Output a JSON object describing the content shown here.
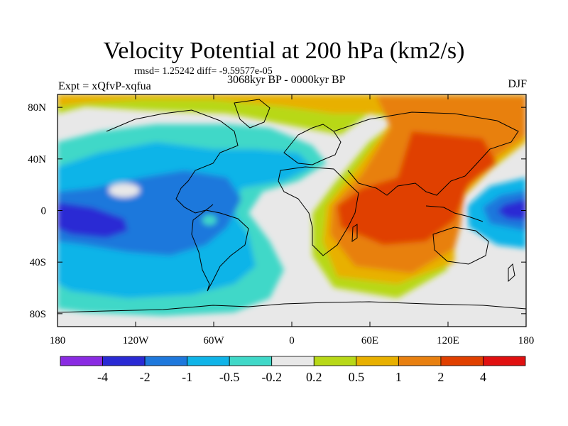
{
  "header": {
    "title": "Velocity Potential at 200 hPa (km2/s)",
    "stats": "rmsd= 1.25242 diff= -9.59577e-05",
    "experiment": "Expt = xQfvP-xqfua",
    "period": "3068kyr BP - 0000kyr BP",
    "season": "DJF"
  },
  "map": {
    "lon_range": [
      -180,
      180
    ],
    "lat_range": [
      -90,
      90
    ],
    "lat_ticks": [
      {
        "value": 80,
        "label": "80N"
      },
      {
        "value": 40,
        "label": "40N"
      },
      {
        "value": 0,
        "label": "0"
      },
      {
        "value": -40,
        "label": "40S"
      },
      {
        "value": -80,
        "label": "80S"
      }
    ],
    "lon_ticks": [
      {
        "value": -180,
        "label": "180"
      },
      {
        "value": -120,
        "label": "120W"
      },
      {
        "value": -60,
        "label": "60W"
      },
      {
        "value": 0,
        "label": "0"
      },
      {
        "value": 60,
        "label": "60E"
      },
      {
        "value": 120,
        "label": "120E"
      },
      {
        "value": 180,
        "label": "180"
      }
    ],
    "background_color": "#e8e8e8",
    "coastline_color": "#000000"
  },
  "colorbar": {
    "colors": [
      "#8a2be2",
      "#2a2ad4",
      "#1e78dc",
      "#10b4e8",
      "#40d8c8",
      "#e8e8e8",
      "#b8d818",
      "#e8b000",
      "#e88010",
      "#e04000",
      "#e01010"
    ],
    "labels": [
      "-4",
      "-2",
      "-1",
      "-0.5",
      "-0.2",
      "0.2",
      "0.5",
      "1",
      "2",
      "4"
    ]
  }
}
